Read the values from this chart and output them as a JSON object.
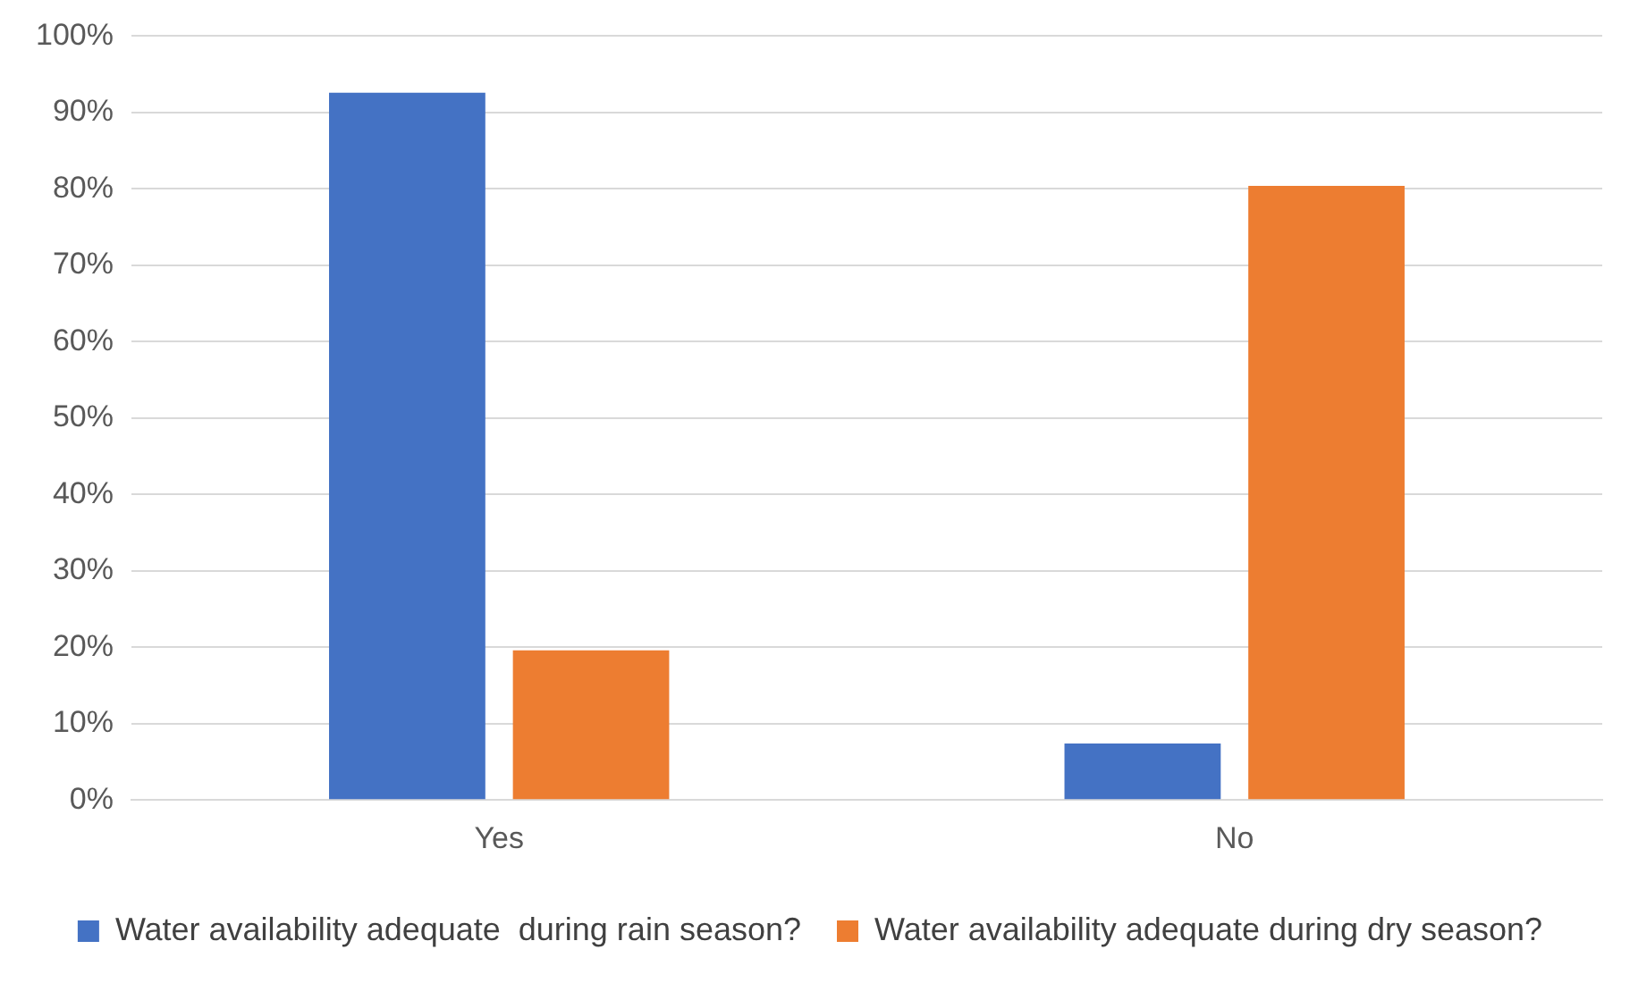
{
  "chart_data": {
    "type": "bar",
    "categories": [
      "Yes",
      "No"
    ],
    "series": [
      {
        "name": "Water availability adequate  during rain season?",
        "color": "#4472c4",
        "values": [
          92.6,
          7.4
        ]
      },
      {
        "name": "Water availability adequate during dry season?",
        "color": "#ed7d31",
        "values": [
          19.6,
          80.4
        ]
      }
    ],
    "ylim": [
      0,
      100
    ],
    "yticks": [
      {
        "value": 0,
        "label": "0%"
      },
      {
        "value": 10,
        "label": "10%"
      },
      {
        "value": 20,
        "label": "20%"
      },
      {
        "value": 30,
        "label": "30%"
      },
      {
        "value": 40,
        "label": "40%"
      },
      {
        "value": 50,
        "label": "50%"
      },
      {
        "value": 60,
        "label": "60%"
      },
      {
        "value": 70,
        "label": "70%"
      },
      {
        "value": 80,
        "label": "80%"
      },
      {
        "value": 90,
        "label": "90%"
      },
      {
        "value": 100,
        "label": "100%"
      }
    ],
    "grid": "y",
    "legend": "bottom"
  }
}
